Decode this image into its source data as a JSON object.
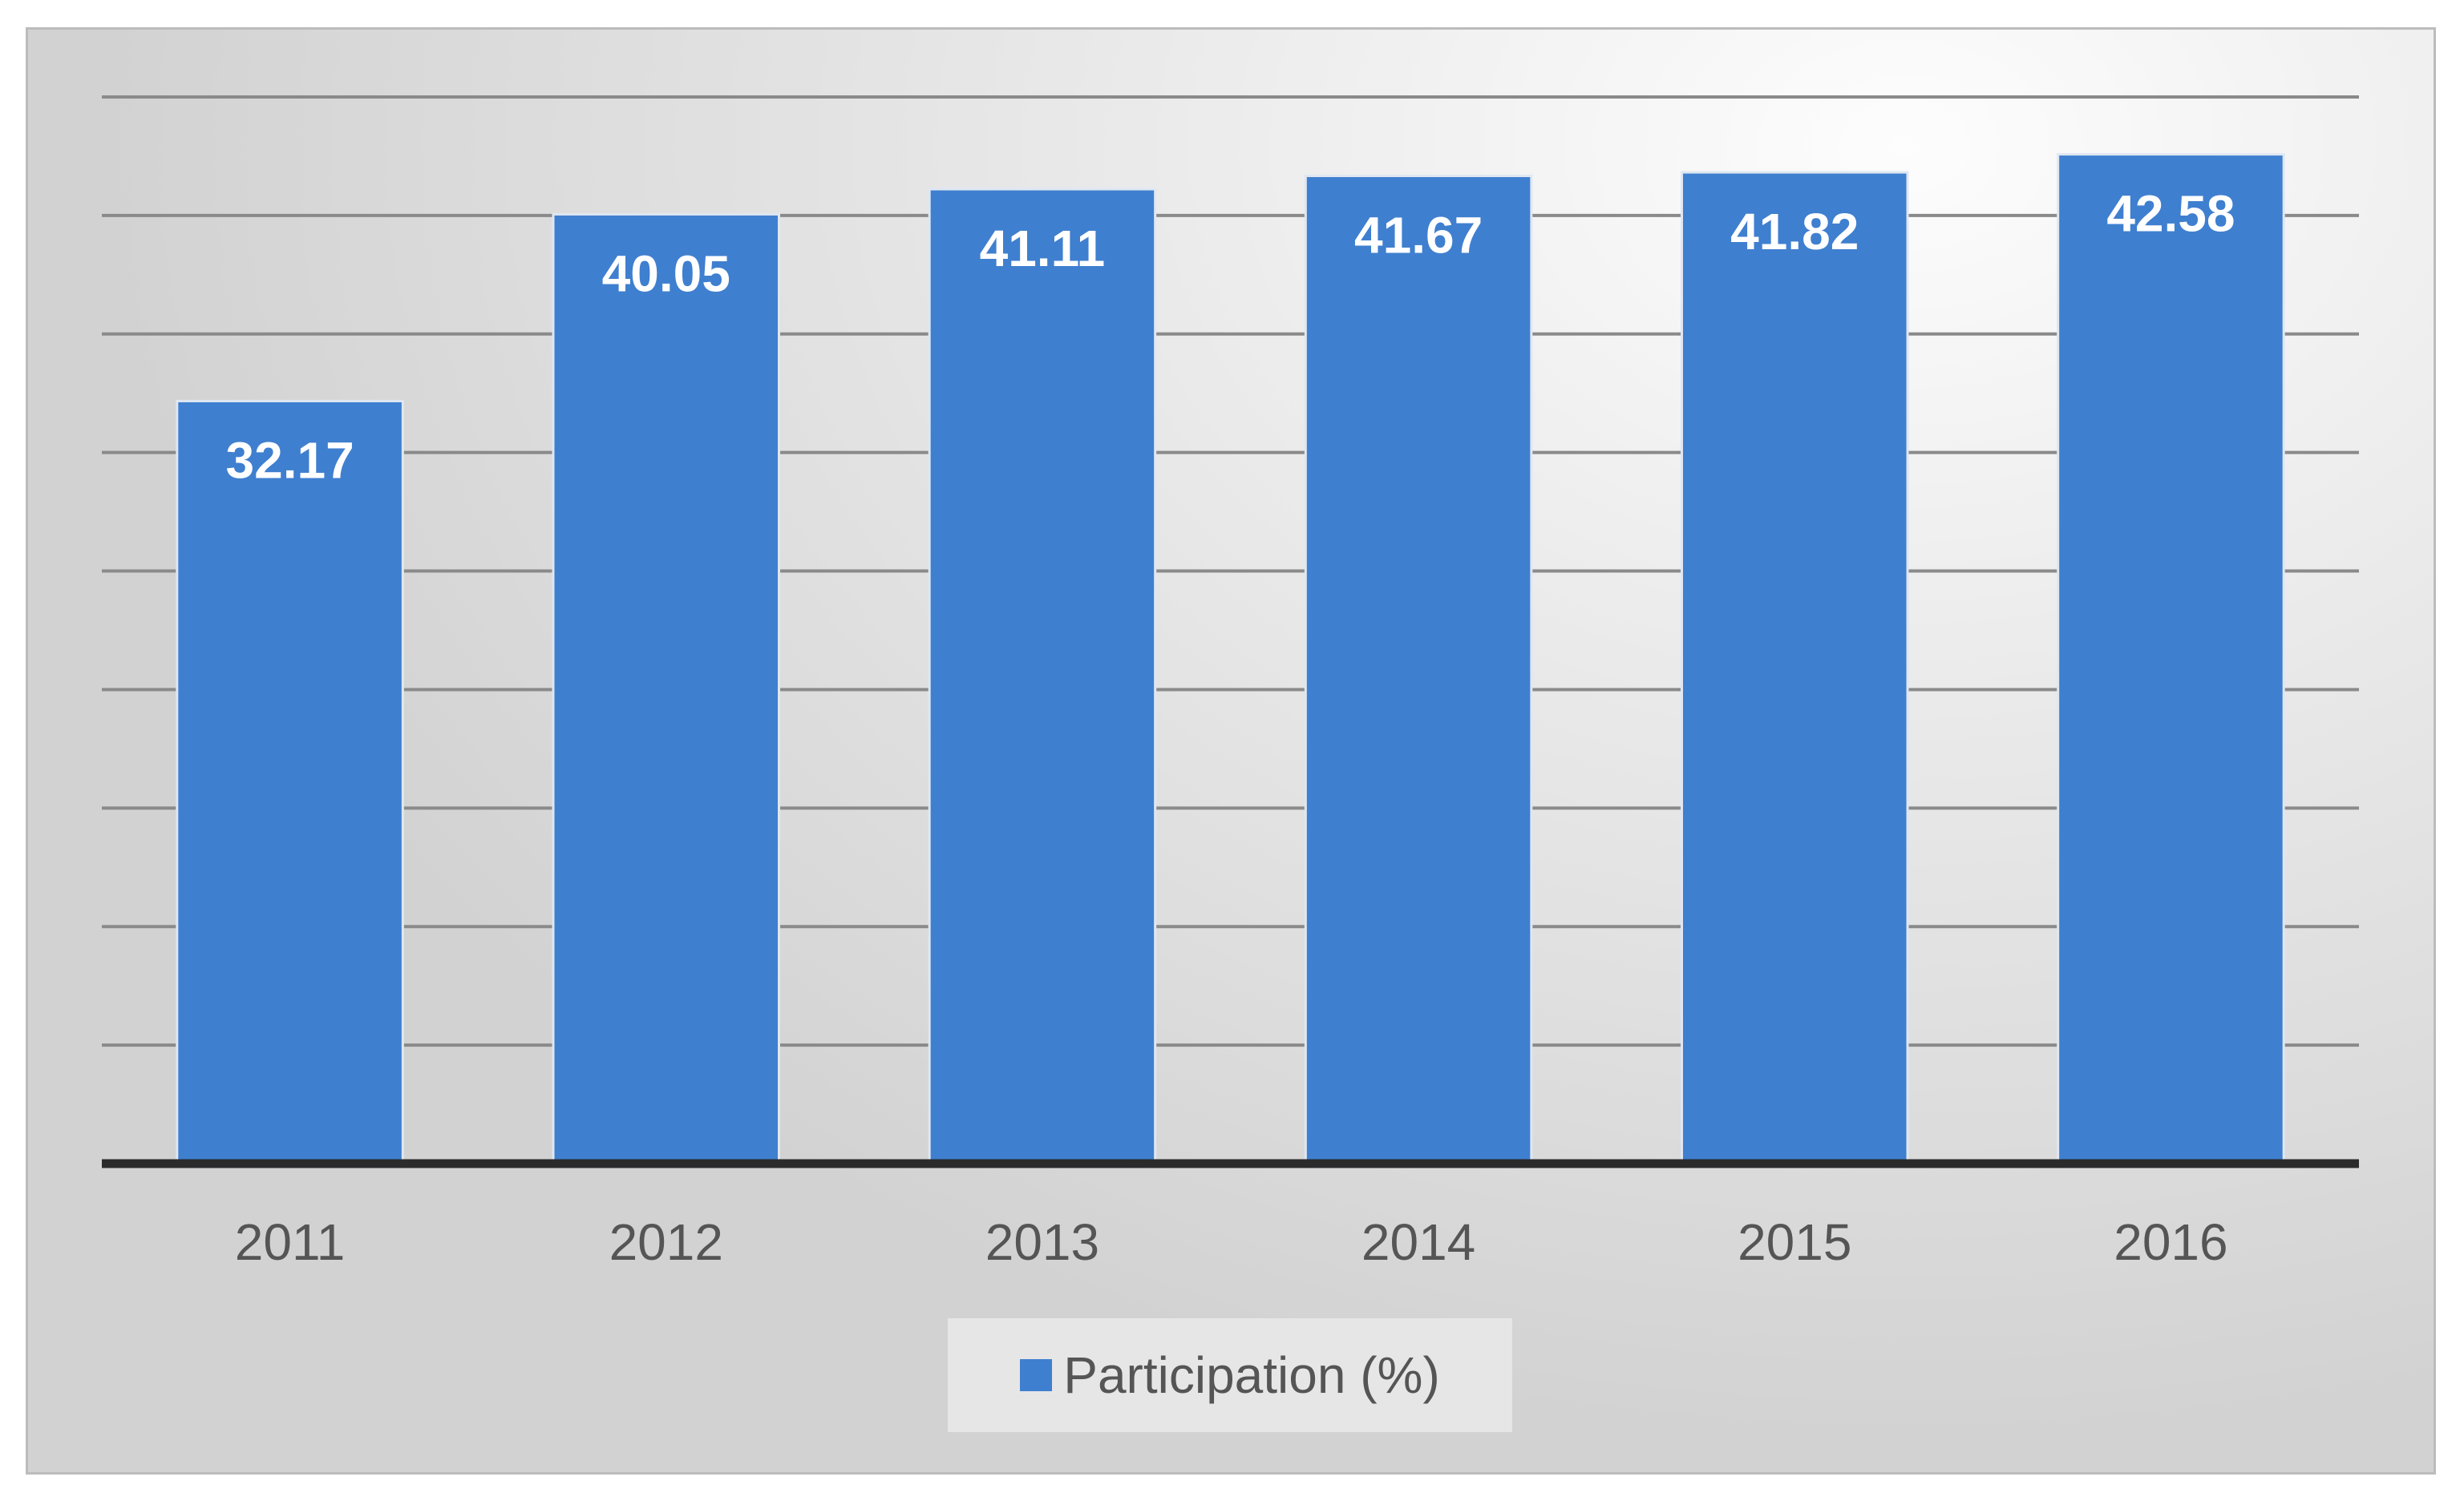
{
  "chart_data": {
    "type": "bar",
    "categories": [
      "2011",
      "2012",
      "2013",
      "2014",
      "2015",
      "2016"
    ],
    "series": [
      {
        "name": "Participation (%)",
        "values": [
          32.17,
          40.05,
          41.11,
          41.67,
          41.82,
          42.58
        ]
      }
    ],
    "data_labels": [
      "32.17",
      "40.05",
      "41.11",
      "41.67",
      "41.82",
      "42.58"
    ],
    "ylim": [
      0,
      45
    ],
    "grid": true,
    "y_tick_labels_shown": false,
    "legend_position": "bottom",
    "colors": {
      "bar": "#3f7fcf",
      "gridline": "#8a8a8a",
      "axis": "#2b2b2b",
      "background": "#dcdcdc"
    }
  }
}
